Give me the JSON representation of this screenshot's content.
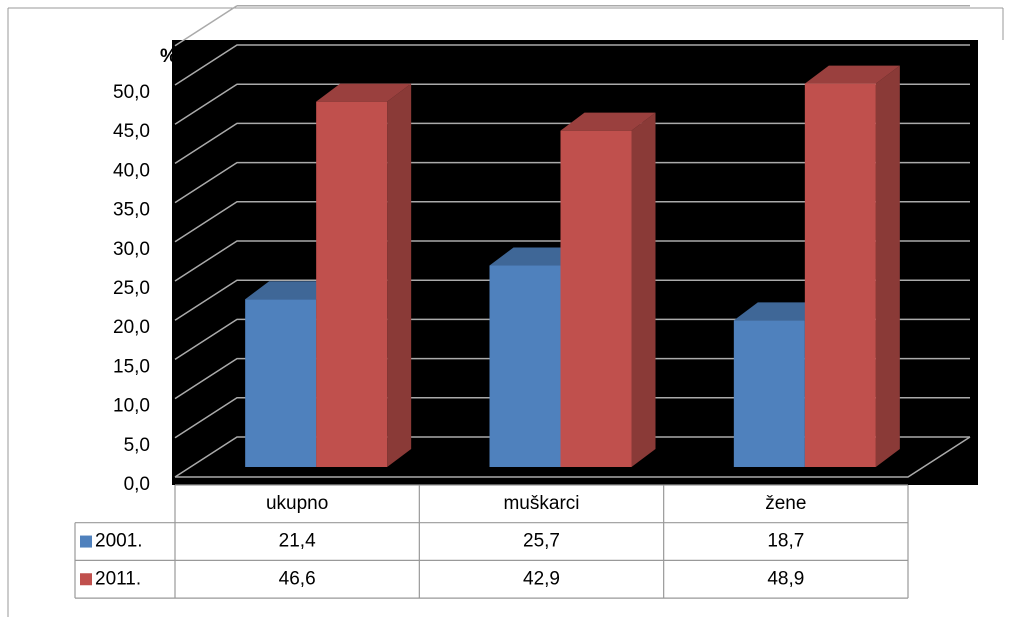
{
  "chart_data": {
    "type": "bar3d",
    "y_label": "%",
    "categories": [
      "ukupno",
      "muškarci",
      "žene"
    ],
    "series": [
      {
        "name": "2001.",
        "color": "#4f81bd",
        "values": [
          21.4,
          25.7,
          18.7
        ],
        "value_labels": [
          "21,4",
          "25,7",
          "18,7"
        ]
      },
      {
        "name": "2011.",
        "color": "#c0504d",
        "values": [
          46.6,
          42.9,
          48.9
        ],
        "value_labels": [
          "46,6",
          "42,9",
          "48,9"
        ]
      }
    ],
    "ylim": [
      0,
      55
    ],
    "yticks": [
      {
        "value": 0,
        "label": "0,0"
      },
      {
        "value": 5,
        "label": "5,0"
      },
      {
        "value": 10,
        "label": "10,0"
      },
      {
        "value": 15,
        "label": "15,0"
      },
      {
        "value": 20,
        "label": "20,0"
      },
      {
        "value": 25,
        "label": "25,0"
      },
      {
        "value": 30,
        "label": "30,0"
      },
      {
        "value": 35,
        "label": "35,0"
      },
      {
        "value": 40,
        "label": "40,0"
      },
      {
        "value": 45,
        "label": "45,0"
      },
      {
        "value": 50,
        "label": "50,0"
      }
    ],
    "grid": true,
    "background": "#000000"
  }
}
